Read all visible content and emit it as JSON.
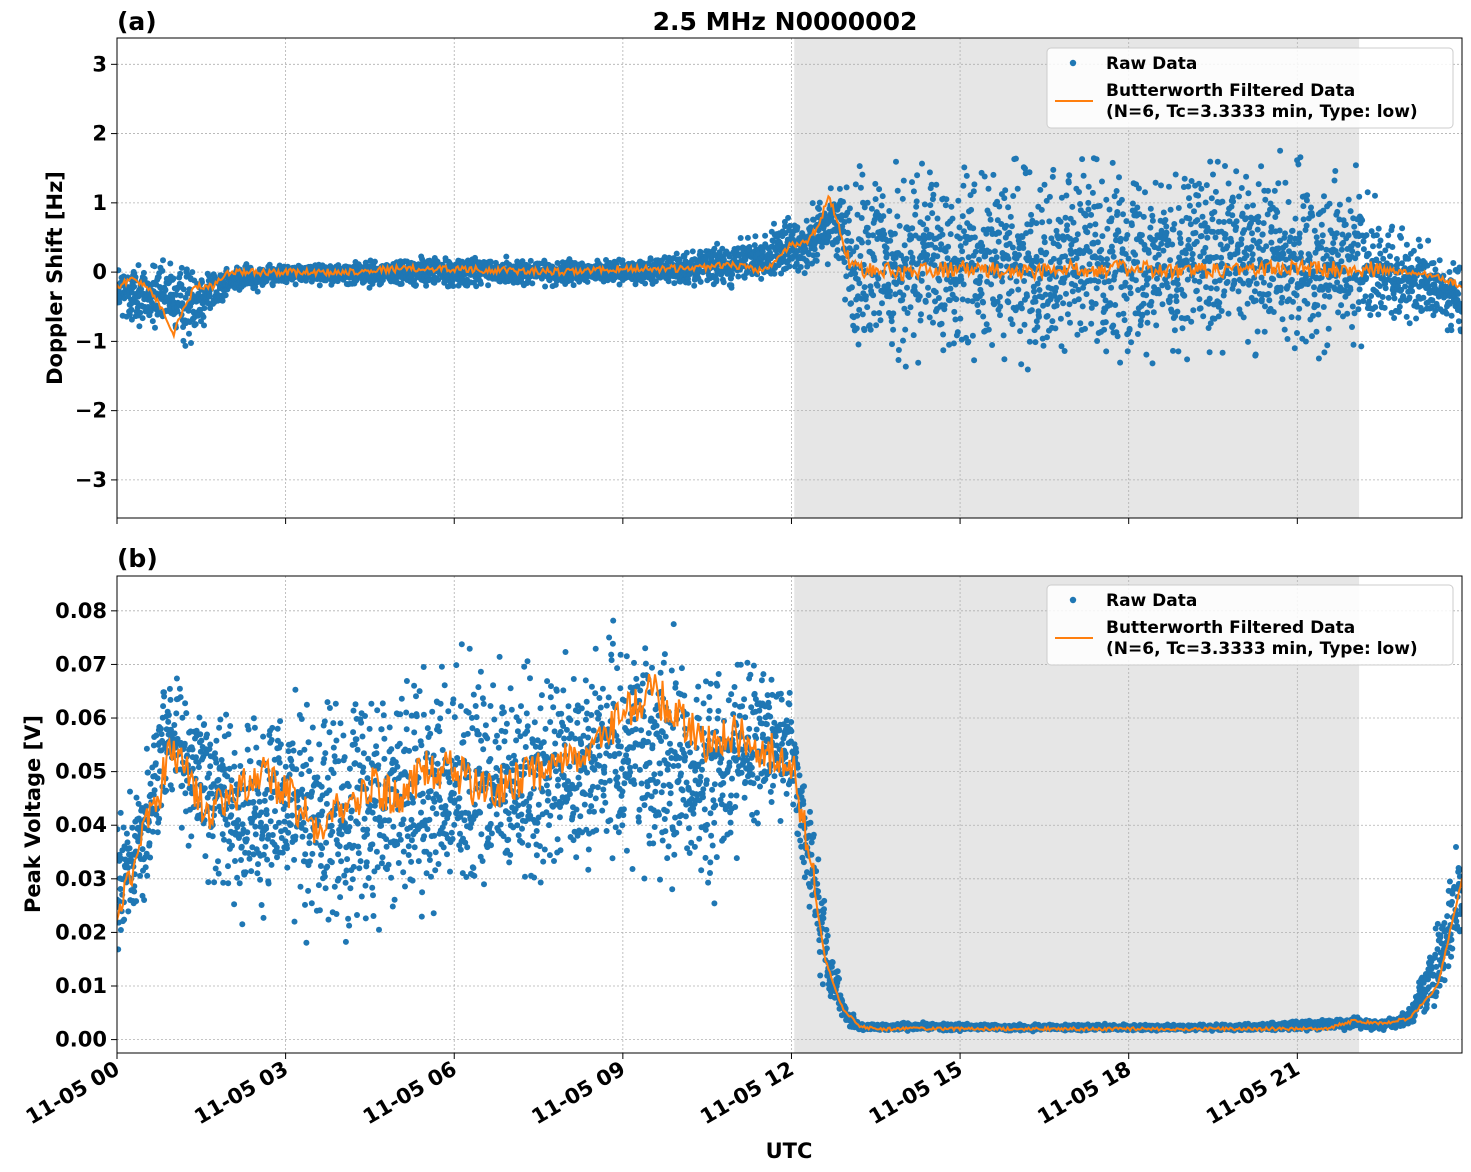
{
  "figure": {
    "title": "2.5 MHz N0000002",
    "xlabel": "UTC",
    "colors": {
      "raw": "#1f77b4",
      "filtered": "#ff7f0e",
      "shade": "#e6e6e6",
      "grid": "#b0b0b0"
    }
  },
  "chart_data": [
    {
      "panel": "(a)",
      "type": "scatter",
      "title": "2.5 MHz N0000002",
      "ylabel": "Doppler Shift [Hz]",
      "xlabel": "",
      "ylim": [
        -3.55,
        3.38
      ],
      "xlim_hours": [
        0,
        23.93
      ],
      "yticks": [
        3,
        2,
        1,
        0,
        -1,
        -2,
        -3
      ],
      "ytick_labels": [
        "3",
        "2",
        "1",
        "0",
        "−1",
        "−2",
        "−3"
      ],
      "shaded_interval_hours": [
        12.05,
        22.1
      ],
      "grid": true,
      "legend_placement": "top-right",
      "legend": [
        "Raw Data",
        "Butterworth Filtered Data",
        "(N=6, Tc=3.3333 min, Type: low)"
      ],
      "series": [
        {
          "name": "Raw Data",
          "kind": "scatter",
          "envelope_hours": [
            0,
            1,
            1.2,
            2,
            3,
            6,
            9,
            11,
            12,
            12.9,
            13.05,
            22.0,
            22.5,
            23.93
          ],
          "envelope_low": [
            -0.9,
            -1.0,
            -1.3,
            -0.4,
            -0.2,
            -0.3,
            -0.2,
            -0.3,
            -0.2,
            -0.1,
            -1.6,
            -1.6,
            -0.9,
            -1.0
          ],
          "envelope_high": [
            0.3,
            0.25,
            0.3,
            0.15,
            0.15,
            0.3,
            0.2,
            0.5,
            0.9,
            1.5,
            1.9,
            2.0,
            1.0,
            0.2
          ]
        },
        {
          "name": "Butterworth Filtered Data",
          "kind": "line",
          "x_hours": [
            0,
            0.3,
            0.6,
            0.9,
            1.0,
            1.2,
            1.4,
            1.7,
            2.0,
            3,
            4,
            5,
            6,
            7,
            8,
            9,
            10,
            11,
            11.5,
            12,
            12.3,
            12.5,
            12.65,
            12.8,
            12.95,
            13.1,
            14,
            15,
            16,
            17,
            18,
            19,
            20,
            21,
            22,
            23,
            23.5,
            23.93
          ],
          "y": [
            -0.2,
            -0.1,
            -0.25,
            -0.7,
            -0.9,
            -0.5,
            -0.2,
            -0.2,
            0.0,
            0.0,
            0.0,
            0.05,
            0.05,
            0.02,
            0.0,
            0.05,
            0.05,
            0.1,
            0.0,
            0.4,
            0.45,
            0.7,
            1.1,
            0.8,
            0.3,
            0.05,
            0.0,
            0.05,
            0.0,
            0.05,
            0.05,
            0.0,
            0.05,
            0.05,
            0.05,
            0.0,
            -0.05,
            -0.2
          ]
        }
      ]
    },
    {
      "panel": "(b)",
      "type": "scatter",
      "ylabel": "Peak Voltage [V]",
      "xlabel": "UTC",
      "ylim": [
        -0.0025,
        0.0865
      ],
      "xlim_hours": [
        0,
        23.93
      ],
      "yticks": [
        0.08,
        0.07,
        0.06,
        0.05,
        0.04,
        0.03,
        0.02,
        0.01,
        0.0
      ],
      "ytick_labels": [
        "0.08",
        "0.07",
        "0.06",
        "0.05",
        "0.04",
        "0.03",
        "0.02",
        "0.01",
        "0.00"
      ],
      "xticks_hours": [
        0,
        3,
        6,
        9,
        12,
        15,
        18,
        21
      ],
      "xtick_labels": [
        "11-05 00",
        "11-05 03",
        "11-05 06",
        "11-05 09",
        "11-05 12",
        "11-05 15",
        "11-05 18",
        "11-05 21"
      ],
      "shaded_interval_hours": [
        12.05,
        22.1
      ],
      "grid": true,
      "legend_placement": "top-right",
      "legend": [
        "Raw Data",
        "Butterworth Filtered Data",
        "(N=6, Tc=3.3333 min, Type: low)"
      ],
      "series": [
        {
          "name": "Raw Data",
          "kind": "scatter",
          "envelope_hours": [
            0,
            0.5,
            0.9,
            1.3,
            2,
            3,
            4,
            5,
            6,
            7,
            8,
            8.8,
            9.5,
            10.5,
            11.5,
            12.0,
            12.4,
            12.7,
            13.0,
            13.3,
            14,
            16,
            18,
            20,
            22,
            22.5,
            23,
            23.5,
            23.93
          ],
          "envelope_low": [
            0.014,
            0.022,
            0.04,
            0.033,
            0.02,
            0.015,
            0.012,
            0.018,
            0.018,
            0.02,
            0.025,
            0.03,
            0.025,
            0.02,
            0.035,
            0.04,
            0.015,
            0.005,
            0.002,
            0.0015,
            0.0015,
            0.0015,
            0.0015,
            0.0015,
            0.0015,
            0.0015,
            0.002,
            0.005,
            0.012
          ],
          "envelope_high": [
            0.045,
            0.055,
            0.075,
            0.07,
            0.065,
            0.07,
            0.072,
            0.074,
            0.076,
            0.075,
            0.074,
            0.082,
            0.08,
            0.078,
            0.08,
            0.068,
            0.045,
            0.02,
            0.006,
            0.003,
            0.0035,
            0.003,
            0.003,
            0.003,
            0.0045,
            0.004,
            0.006,
            0.025,
            0.046
          ]
        },
        {
          "name": "Butterworth Filtered Data",
          "kind": "line",
          "x_hours": [
            0,
            0.4,
            0.8,
            1.0,
            1.3,
            1.6,
            2,
            2.5,
            3,
            3.5,
            4,
            4.5,
            5,
            5.5,
            6,
            6.5,
            7,
            7.5,
            8,
            8.5,
            9,
            9.5,
            10,
            10.5,
            11,
            11.5,
            12.0,
            12.3,
            12.6,
            12.9,
            13.2,
            13.5,
            14,
            16,
            18,
            20,
            21.5,
            22,
            22.5,
            23,
            23.5,
            23.93
          ],
          "y": [
            0.025,
            0.035,
            0.048,
            0.055,
            0.048,
            0.042,
            0.045,
            0.05,
            0.046,
            0.04,
            0.043,
            0.047,
            0.045,
            0.05,
            0.05,
            0.046,
            0.048,
            0.05,
            0.053,
            0.055,
            0.06,
            0.065,
            0.06,
            0.055,
            0.057,
            0.054,
            0.052,
            0.035,
            0.015,
            0.006,
            0.0025,
            0.002,
            0.002,
            0.002,
            0.002,
            0.002,
            0.002,
            0.0035,
            0.003,
            0.004,
            0.01,
            0.03
          ]
        }
      ]
    }
  ]
}
